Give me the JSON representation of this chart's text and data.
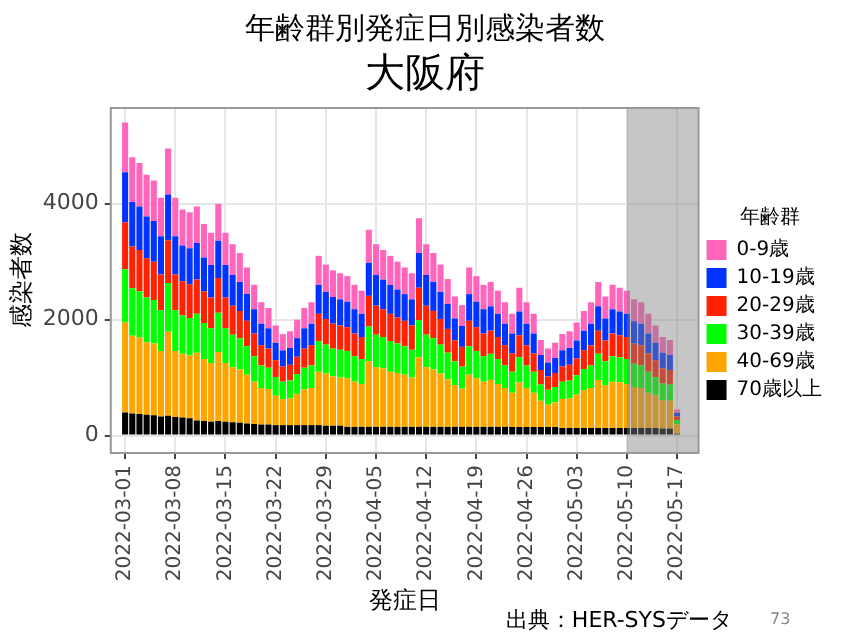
{
  "chart_data": {
    "type": "bar",
    "title": "年齢群別発症日別感染者数",
    "subtitle": "大阪府",
    "xlabel": "発症日",
    "ylabel": "感染者数",
    "legend_title": "年齢群",
    "x": [
      "2022-03-01",
      "2022-03-02",
      "2022-03-03",
      "2022-03-04",
      "2022-03-05",
      "2022-03-06",
      "2022-03-07",
      "2022-03-08",
      "2022-03-09",
      "2022-03-10",
      "2022-03-11",
      "2022-03-12",
      "2022-03-13",
      "2022-03-14",
      "2022-03-15",
      "2022-03-16",
      "2022-03-17",
      "2022-03-18",
      "2022-03-19",
      "2022-03-20",
      "2022-03-21",
      "2022-03-22",
      "2022-03-23",
      "2022-03-24",
      "2022-03-25",
      "2022-03-26",
      "2022-03-27",
      "2022-03-28",
      "2022-03-29",
      "2022-03-30",
      "2022-03-31",
      "2022-04-01",
      "2022-04-02",
      "2022-04-03",
      "2022-04-04",
      "2022-04-05",
      "2022-04-06",
      "2022-04-07",
      "2022-04-08",
      "2022-04-09",
      "2022-04-10",
      "2022-04-11",
      "2022-04-12",
      "2022-04-13",
      "2022-04-14",
      "2022-04-15",
      "2022-04-16",
      "2022-04-17",
      "2022-04-18",
      "2022-04-19",
      "2022-04-20",
      "2022-04-21",
      "2022-04-22",
      "2022-04-23",
      "2022-04-24",
      "2022-04-25",
      "2022-04-26",
      "2022-04-27",
      "2022-04-28",
      "2022-04-29",
      "2022-04-30",
      "2022-05-01",
      "2022-05-02",
      "2022-05-03",
      "2022-05-04",
      "2022-05-05",
      "2022-05-06",
      "2022-05-07",
      "2022-05-08",
      "2022-05-09",
      "2022-05-10",
      "2022-05-11",
      "2022-05-12",
      "2022-05-13",
      "2022-05-14",
      "2022-05-15",
      "2022-05-16",
      "2022-05-17"
    ],
    "series": [
      {
        "name": "70歳以上",
        "color": "#000000",
        "values": [
          400,
          380,
          370,
          360,
          350,
          330,
          340,
          320,
          310,
          300,
          260,
          250,
          240,
          250,
          240,
          230,
          220,
          210,
          200,
          190,
          190,
          180,
          180,
          180,
          180,
          180,
          180,
          180,
          170,
          170,
          170,
          150,
          150,
          150,
          150,
          150,
          150,
          150,
          150,
          150,
          150,
          150,
          150,
          150,
          150,
          150,
          150,
          150,
          150,
          150,
          150,
          150,
          150,
          150,
          150,
          150,
          150,
          150,
          150,
          150,
          150,
          130,
          130,
          130,
          130,
          130,
          130,
          130,
          130,
          130,
          130,
          130,
          130,
          130,
          130,
          120,
          120,
          30
        ]
      },
      {
        "name": "40-69歳",
        "color": "#ffa500",
        "values": [
          1550,
          1340,
          1320,
          1250,
          1240,
          1130,
          1450,
          1140,
          1100,
          1080,
          1170,
          1070,
          1010,
          1190,
          1010,
          950,
          920,
          840,
          730,
          630,
          610,
          510,
          450,
          460,
          540,
          620,
          640,
          920,
          900,
          850,
          830,
          840,
          780,
          740,
          1130,
          1030,
          1010,
          950,
          930,
          900,
          850,
          1200,
          1030,
          990,
          920,
          820,
          720,
          660,
          900,
          840,
          780,
          810,
          740,
          670,
          590,
          770,
          670,
          590,
          450,
          380,
          420,
          500,
          510,
          580,
          650,
          690,
          830,
          740,
          800,
          790,
          760,
          710,
          690,
          610,
          560,
          490,
          480,
          160
        ]
      },
      {
        "name": "30-39歳",
        "color": "#00ff00",
        "values": [
          920,
          820,
          800,
          770,
          750,
          700,
          840,
          700,
          660,
          650,
          670,
          620,
          600,
          680,
          600,
          560,
          540,
          490,
          440,
          390,
          370,
          320,
          300,
          310,
          340,
          370,
          390,
          530,
          500,
          480,
          480,
          470,
          440,
          430,
          600,
          560,
          540,
          530,
          510,
          490,
          480,
          640,
          560,
          540,
          500,
          460,
          410,
          380,
          490,
          470,
          440,
          450,
          430,
          390,
          360,
          430,
          390,
          360,
          280,
          260,
          270,
          300,
          310,
          330,
          370,
          390,
          450,
          410,
          440,
          430,
          430,
          400,
          390,
          360,
          320,
          290,
          280,
          80
        ]
      },
      {
        "name": "20-29歳",
        "color": "#ff2200",
        "values": [
          810,
          720,
          710,
          680,
          660,
          620,
          740,
          620,
          590,
          580,
          590,
          550,
          530,
          600,
          530,
          500,
          470,
          440,
          390,
          350,
          330,
          290,
          260,
          270,
          300,
          330,
          350,
          470,
          440,
          430,
          420,
          410,
          390,
          380,
          530,
          500,
          480,
          470,
          450,
          440,
          420,
          560,
          500,
          470,
          440,
          410,
          360,
          340,
          440,
          410,
          390,
          400,
          380,
          350,
          320,
          380,
          350,
          320,
          250,
          230,
          240,
          260,
          270,
          290,
          320,
          350,
          400,
          360,
          390,
          380,
          380,
          350,
          350,
          320,
          290,
          260,
          250,
          60
        ]
      },
      {
        "name": "10-19歳",
        "color": "#0033ff",
        "values": [
          860,
          770,
          750,
          720,
          700,
          660,
          790,
          660,
          620,
          620,
          630,
          580,
          560,
          640,
          560,
          530,
          500,
          460,
          420,
          370,
          350,
          300,
          280,
          290,
          320,
          350,
          370,
          500,
          470,
          460,
          450,
          440,
          420,
          400,
          570,
          530,
          510,
          500,
          480,
          460,
          450,
          600,
          530,
          500,
          470,
          430,
          380,
          360,
          460,
          440,
          420,
          420,
          400,
          370,
          340,
          410,
          370,
          340,
          260,
          240,
          260,
          280,
          290,
          310,
          340,
          370,
          420,
          380,
          420,
          410,
          400,
          380,
          370,
          340,
          300,
          270,
          260,
          60
        ]
      },
      {
        "name": "0-9歳",
        "color": "#ff66bb",
        "values": [
          860,
          770,
          750,
          720,
          700,
          660,
          790,
          660,
          620,
          620,
          630,
          580,
          560,
          640,
          560,
          530,
          500,
          460,
          420,
          370,
          350,
          300,
          280,
          290,
          320,
          350,
          370,
          500,
          470,
          460,
          450,
          440,
          420,
          400,
          570,
          530,
          510,
          500,
          480,
          460,
          450,
          600,
          530,
          500,
          470,
          430,
          380,
          360,
          460,
          440,
          420,
          420,
          400,
          370,
          340,
          410,
          370,
          340,
          260,
          240,
          260,
          280,
          290,
          310,
          340,
          370,
          420,
          380,
          420,
          410,
          400,
          380,
          370,
          340,
          300,
          270,
          260,
          60
        ]
      }
    ],
    "stacked": true,
    "xlim": [
      "2022-02-27",
      "2022-05-20"
    ],
    "xticks": [
      "2022-03-01",
      "2022-03-08",
      "2022-03-15",
      "2022-03-22",
      "2022-03-29",
      "2022-04-05",
      "2022-04-12",
      "2022-04-19",
      "2022-04-26",
      "2022-05-03",
      "2022-05-10",
      "2022-05-17"
    ],
    "ylim": [
      -300,
      5650
    ],
    "yticks": [
      0,
      2000,
      4000
    ],
    "bands": [
      {
        "axis": "x",
        "from": "2022-05-10",
        "to": "2022-05-20",
        "color": "#808080"
      }
    ],
    "grid": true,
    "legend": "right",
    "annotations": [
      "出典：HER-SYSデータ",
      "73"
    ]
  }
}
